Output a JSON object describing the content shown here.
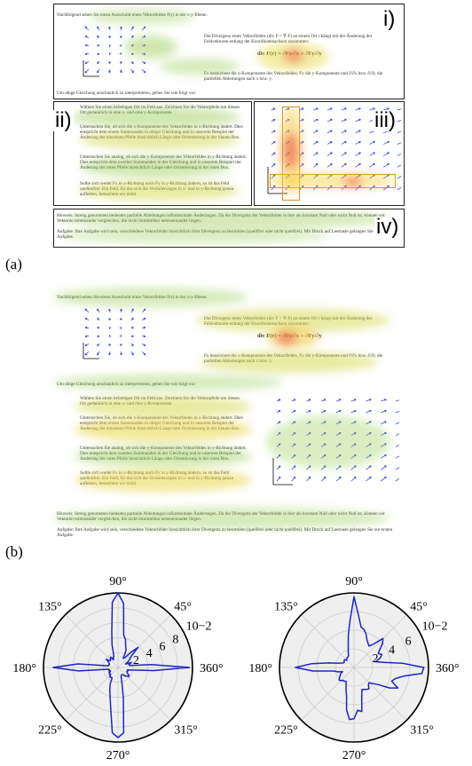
{
  "figure": {
    "panel_labels": [
      "(a)",
      "(b)"
    ],
    "region_labels": [
      "i)",
      "ii)",
      "iii)",
      "iv)"
    ]
  },
  "task": {
    "intro": "Nachfolgend sehen Sie einen Ausschnitt eines Vektorfeldes F(r) in der x-y-Ebene.",
    "divergence_text": "Die Divergenz eines Vektorfeldes (div F = ∇·F) an einem Ort r hängt mit der Änderung der Feldvektoren entlang der Koordinatenachsen zusammen:",
    "formula": "div F(r) = ∂Fx/∂x + ∂Fy/∂y",
    "component_text": "Fx bezeichnet die x-Komponente des Vektorfeldes, Fy die y-Komponente und ∂/∂x bzw. ∂/∂y die partiellen Ableitungen nach x bzw. y.",
    "instruction": "Um obige Gleichung anschaulich zu interpretieren, gehen Sie wie folgt vor:",
    "bullets": [
      "Wählen Sie einen beliebigen Ort im Feld aus. Zeichnen Sie die Vektorpfeile um diesen Ort gedanklich in eine x- und eine y-Komponente.",
      "Untersuchen Sie, ob sich die x-Komponente des Vektorfeldes in x-Richtung ändert. Dies entspricht dem ersten Summanden in obiger Gleichung und in unserem Beispiel der Änderung der einzelnen Pfeile hinsichtlich Länge oder Orientierung in der blauen Box.",
      "Untersuchen Sie analog, ob sich die y-Komponente des Vektorfeldes in y-Richtung ändert. Dies entspricht dem zweiten Summanden in der Gleichung und in unserem Beispiel der Änderung der roten Pfeile hinsichtlich Länge oder Orientierung in der roten Box.",
      "Sollte sich weder Fx in x-Richtung noch Fy in y-Richtung ändern, so ist das Feld quellenfrei. Ein Feld, für das sich die Veränderungen in x- und in y-Richtung genau aufheben, betrachten wir nicht."
    ],
    "hint": "Hinweis: Streng genommen bedeuten partielle Ableitungen infinitesimale Änderungen. Da die Divergenz der Vektorfelder in hier als konstant Null oder nicht Null ist, können wir Vektoren miteinander vergleichen, die nicht immittelbar nebeneinander liegen.",
    "assignment": "Aufgabe: Ihre Aufgabe wird sein, verschiedene Vektorfelder hinsichtlich ihrer Divergenz zu beurteilen (quellfrei oder nicht quellfrei). Mit Druck auf Leertaste gelangen Sie zur ersten Aufgabe."
  },
  "chart_data": [
    {
      "type": "polar-line",
      "panel": "(b) left",
      "angle_ticks": [
        "90°",
        "45°",
        "360°",
        "315°",
        "270°",
        "225°",
        "180°",
        "135°"
      ],
      "radial_ticks": [
        "2",
        "4",
        "6",
        "8"
      ],
      "radial_unit": "10−2",
      "rlim": [
        0,
        10
      ],
      "series": [
        {
          "color": "#1f22c9",
          "theta_deg": [
            0,
            5,
            10,
            15,
            20,
            25,
            30,
            35,
            40,
            45,
            50,
            55,
            60,
            65,
            70,
            75,
            80,
            85,
            90,
            95,
            100,
            105,
            110,
            115,
            120,
            125,
            130,
            135,
            140,
            145,
            150,
            155,
            160,
            165,
            170,
            175,
            180,
            185,
            190,
            195,
            200,
            205,
            210,
            215,
            220,
            225,
            230,
            235,
            240,
            245,
            250,
            255,
            260,
            265,
            270,
            275,
            280,
            285,
            290,
            295,
            300,
            305,
            310,
            315,
            320,
            325,
            330,
            335,
            340,
            345,
            350,
            355
          ],
          "r": [
            9.6,
            4.5,
            1.6,
            1.5,
            1.9,
            1.1,
            1.6,
            1.9,
            2.3,
            3.8,
            2.6,
            1.6,
            1.4,
            2.6,
            3.0,
            3.9,
            4.4,
            8.6,
            10.0,
            8.8,
            4.8,
            3.1,
            1.6,
            1.5,
            1.2,
            1.7,
            1.6,
            1.4,
            1.4,
            1.9,
            1.5,
            1.3,
            1.2,
            1.3,
            1.3,
            5.4,
            8.7,
            5.3,
            1.4,
            1.2,
            1.3,
            1.1,
            1.4,
            1.3,
            1.5,
            1.4,
            1.7,
            1.6,
            1.6,
            2.5,
            3.2,
            4.1,
            5.6,
            8.8,
            9.4,
            8.8,
            4.1,
            2.0,
            1.2,
            1.1,
            1.1,
            1.2,
            1.5,
            1.6,
            1.9,
            1.8,
            1.4,
            1.3,
            1.4,
            1.3,
            2.0,
            4.8
          ]
        }
      ]
    },
    {
      "type": "polar-line",
      "panel": "(b) right",
      "angle_ticks": [
        "90°",
        "45°",
        "360°",
        "315°",
        "270°",
        "225°",
        "180°",
        "135°"
      ],
      "radial_ticks": [
        "2",
        "4",
        "6"
      ],
      "radial_unit": "10−2",
      "rlim": [
        0,
        8
      ],
      "series": [
        {
          "color": "#1f22c9",
          "theta_deg": [
            0,
            5,
            10,
            15,
            20,
            25,
            30,
            35,
            40,
            45,
            50,
            55,
            60,
            65,
            70,
            75,
            80,
            85,
            90,
            95,
            100,
            105,
            110,
            115,
            120,
            125,
            130,
            135,
            140,
            145,
            150,
            155,
            160,
            165,
            170,
            175,
            180,
            185,
            190,
            195,
            200,
            205,
            210,
            215,
            220,
            225,
            230,
            235,
            240,
            245,
            250,
            255,
            260,
            265,
            270,
            275,
            280,
            285,
            290,
            295,
            300,
            305,
            310,
            315,
            320,
            325,
            330,
            335,
            340,
            345,
            350,
            355
          ],
          "r": [
            7.5,
            5.2,
            3.2,
            2.4,
            3.0,
            3.3,
            3.0,
            3.4,
            4.0,
            4.4,
            3.3,
            2.8,
            3.0,
            3.3,
            3.8,
            4.2,
            4.4,
            5.6,
            7.6,
            5.0,
            3.5,
            2.4,
            1.8,
            1.4,
            1.3,
            1.3,
            1.2,
            1.1,
            1.3,
            1.3,
            1.2,
            1.2,
            1.4,
            1.8,
            2.8,
            4.6,
            6.3,
            4.4,
            2.2,
            1.8,
            1.3,
            1.6,
            1.7,
            1.9,
            2.1,
            2.0,
            1.8,
            1.8,
            1.7,
            2.0,
            2.5,
            3.1,
            4.6,
            5.6,
            5.5,
            4.6,
            4.8,
            3.2,
            2.5,
            2.6,
            2.7,
            2.8,
            2.4,
            2.3,
            2.7,
            3.2,
            4.4,
            5.2,
            4.3,
            4.6,
            5.4,
            7.3
          ]
        }
      ]
    }
  ]
}
